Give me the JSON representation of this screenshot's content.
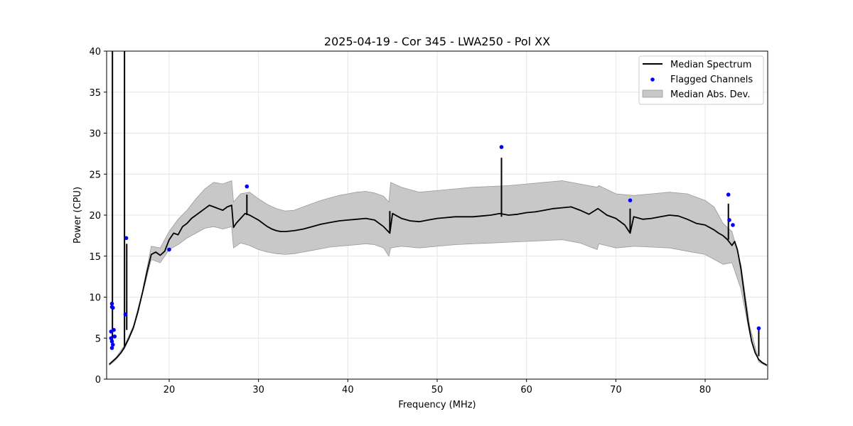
{
  "chart_data": {
    "type": "line",
    "title": "2025-04-19 - Cor 345 - LWA250 - Pol XX",
    "xlabel": "Frequency (MHz)",
    "ylabel": "Power (CPU)",
    "xlim": [
      13.0,
      87.0
    ],
    "ylim": [
      0,
      40
    ],
    "xticks": [
      20,
      30,
      40,
      50,
      60,
      70,
      80
    ],
    "yticks": [
      0,
      5,
      10,
      15,
      20,
      25,
      30,
      35,
      40
    ],
    "grid": true,
    "legend_position": "top-right",
    "legend": [
      "Median Spectrum",
      "Flagged Channels",
      "Median Abs. Dev."
    ],
    "colors": {
      "median": "#000000",
      "flagged": "#0000ff",
      "band_fill": "#c8c8c8",
      "band_edge": "#9a9a9a",
      "grid": "#e6e6e6"
    },
    "series": [
      {
        "name": "Median Spectrum",
        "x": [
          13.3,
          13.5,
          13.8,
          14.2,
          14.6,
          15.0,
          15.5,
          16.0,
          16.5,
          17.0,
          17.5,
          18.0,
          18.5,
          19.0,
          19.5,
          20.0,
          20.5,
          21.0,
          21.5,
          22.0,
          22.5,
          23.0,
          23.5,
          24.0,
          24.5,
          25.0,
          25.5,
          26.0,
          26.5,
          27.0,
          27.2,
          27.5,
          28.0,
          28.5,
          29.0,
          29.5,
          30.0,
          30.5,
          31.0,
          31.5,
          32.0,
          32.5,
          33.0,
          34.0,
          35.0,
          36.0,
          37.0,
          38.0,
          39.0,
          40.0,
          41.0,
          42.0,
          43.0,
          44.0,
          44.7,
          45.0,
          46.0,
          47.0,
          48.0,
          49.0,
          50.0,
          51.0,
          52.0,
          53.0,
          54.0,
          55.0,
          56.0,
          57.0,
          58.0,
          59.0,
          60.0,
          61.0,
          62.0,
          63.0,
          64.0,
          65.0,
          66.0,
          67.0,
          68.0,
          69.0,
          70.0,
          71.0,
          71.6,
          72.0,
          73.0,
          74.0,
          75.0,
          76.0,
          77.0,
          78.0,
          79.0,
          80.0,
          81.0,
          81.5,
          82.0,
          82.5,
          83.0,
          83.3,
          83.6,
          84.0,
          84.4,
          84.8,
          85.2,
          85.6,
          86.0,
          86.4,
          86.9
        ],
        "values": [
          1.8,
          2.0,
          2.3,
          2.7,
          3.2,
          3.9,
          5.0,
          6.3,
          8.2,
          10.5,
          13.0,
          15.2,
          15.5,
          15.1,
          15.6,
          17.0,
          17.8,
          17.6,
          18.6,
          19.0,
          19.6,
          20.0,
          20.4,
          20.8,
          21.2,
          21.0,
          20.8,
          20.6,
          21.0,
          21.2,
          18.5,
          19.0,
          19.6,
          20.2,
          20.0,
          19.7,
          19.4,
          19.0,
          18.6,
          18.3,
          18.1,
          18.0,
          18.0,
          18.1,
          18.3,
          18.6,
          18.9,
          19.1,
          19.3,
          19.4,
          19.5,
          19.6,
          19.4,
          18.6,
          17.8,
          20.2,
          19.6,
          19.3,
          19.2,
          19.4,
          19.6,
          19.7,
          19.8,
          19.8,
          19.8,
          19.9,
          20.0,
          20.2,
          20.0,
          20.1,
          20.3,
          20.4,
          20.6,
          20.8,
          20.9,
          21.0,
          20.6,
          20.1,
          20.8,
          20.0,
          19.6,
          18.8,
          17.8,
          19.8,
          19.5,
          19.6,
          19.8,
          20.0,
          19.9,
          19.5,
          19.0,
          18.8,
          18.2,
          17.8,
          17.5,
          17.0,
          16.3,
          16.8,
          15.8,
          13.5,
          10.2,
          7.0,
          4.6,
          3.2,
          2.4,
          2.0,
          1.7
        ]
      },
      {
        "name": "Median Abs. Dev.",
        "x": [
          13.3,
          14.0,
          15.0,
          16.0,
          17.0,
          18.0,
          19.0,
          20.0,
          21.0,
          22.0,
          23.0,
          24.0,
          25.0,
          26.0,
          27.0,
          27.2,
          28.0,
          29.0,
          30.0,
          31.0,
          32.0,
          33.0,
          34.0,
          35.0,
          36.0,
          37.0,
          38.0,
          39.0,
          40.0,
          41.0,
          42.0,
          43.0,
          44.0,
          44.6,
          44.8,
          46.0,
          48.0,
          50.0,
          52.0,
          54.0,
          56.0,
          58.0,
          60.0,
          62.0,
          64.0,
          66.0,
          67.9,
          68.1,
          70.0,
          72.0,
          74.0,
          76.0,
          78.0,
          80.0,
          81.0,
          82.0,
          83.0,
          84.0,
          85.0,
          86.0,
          86.9
        ],
        "upper": [
          1.9,
          2.6,
          4.1,
          6.5,
          10.7,
          16.2,
          16.0,
          18.0,
          19.5,
          20.6,
          22.0,
          23.2,
          24.0,
          23.8,
          24.2,
          21.6,
          22.6,
          22.8,
          22.0,
          21.3,
          20.8,
          20.5,
          20.6,
          21.0,
          21.4,
          21.8,
          22.1,
          22.4,
          22.6,
          22.8,
          22.9,
          22.7,
          22.3,
          21.6,
          24.0,
          23.4,
          22.8,
          23.0,
          23.2,
          23.4,
          23.5,
          23.6,
          23.8,
          24.0,
          24.2,
          23.8,
          23.4,
          23.6,
          22.6,
          22.4,
          22.6,
          22.8,
          22.6,
          21.8,
          21.0,
          19.0,
          18.0,
          14.0,
          6.4,
          2.3,
          1.8
        ],
        "lower": [
          1.7,
          2.3,
          3.7,
          6.1,
          10.3,
          14.6,
          14.2,
          15.8,
          16.4,
          17.2,
          17.8,
          18.4,
          18.6,
          18.3,
          18.6,
          16.0,
          16.6,
          16.3,
          15.8,
          15.5,
          15.3,
          15.2,
          15.3,
          15.5,
          15.7,
          15.9,
          16.1,
          16.2,
          16.3,
          16.4,
          16.5,
          16.4,
          16.0,
          15.0,
          16.0,
          16.2,
          16.0,
          16.2,
          16.4,
          16.5,
          16.6,
          16.7,
          16.8,
          16.9,
          17.0,
          16.6,
          15.8,
          16.5,
          16.0,
          16.2,
          16.1,
          16.0,
          15.6,
          15.2,
          14.6,
          14.0,
          14.2,
          11.0,
          5.4,
          2.1,
          1.6
        ]
      },
      {
        "name": "Flagged Channels",
        "x": [
          13.6,
          13.6,
          13.7,
          13.8,
          13.5,
          13.5,
          13.6,
          13.9,
          13.7,
          13.6,
          15.2,
          15.1,
          20.0,
          28.7,
          57.2,
          71.6,
          82.6,
          82.7,
          83.1,
          86.0
        ],
        "values": [
          9.2,
          8.8,
          8.7,
          6.0,
          5.8,
          5.0,
          4.6,
          5.2,
          4.2,
          3.8,
          17.2,
          7.9,
          15.8,
          23.5,
          28.3,
          21.8,
          22.5,
          19.4,
          18.8,
          6.2
        ]
      }
    ],
    "spikes": [
      {
        "x": 13.65,
        "from": 3.8,
        "to": 40
      },
      {
        "x": 15.0,
        "from": 4.0,
        "to": 40
      },
      {
        "x": 15.25,
        "from": 6.0,
        "to": 16.5
      },
      {
        "x": 28.7,
        "from": 20.0,
        "to": 22.5
      },
      {
        "x": 44.7,
        "from": 17.8,
        "to": 20.5
      },
      {
        "x": 57.2,
        "from": 19.8,
        "to": 27.0
      },
      {
        "x": 71.6,
        "from": 17.8,
        "to": 20.8
      },
      {
        "x": 82.6,
        "from": 17.0,
        "to": 21.4
      },
      {
        "x": 86.0,
        "from": 2.8,
        "to": 6.0
      }
    ]
  }
}
